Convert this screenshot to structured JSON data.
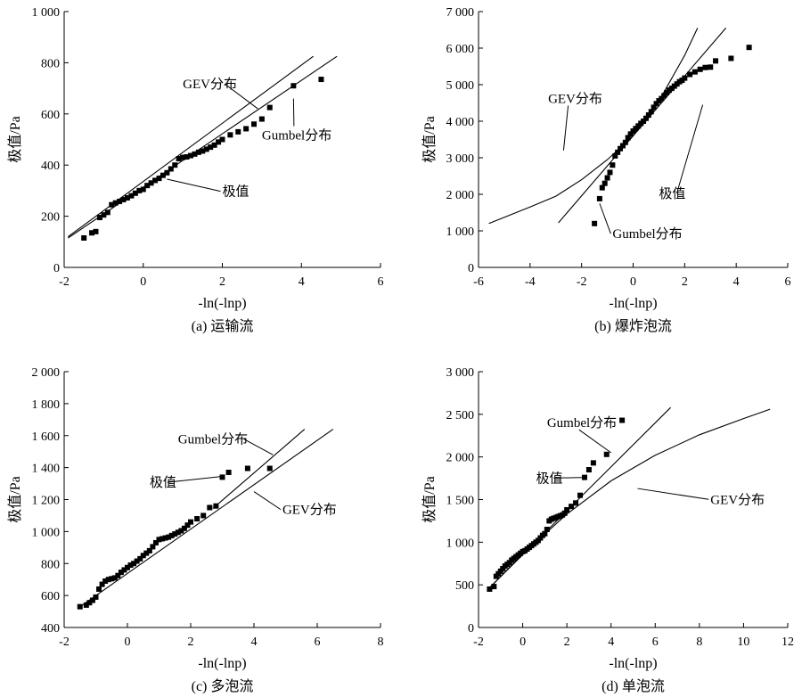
{
  "chart_data": [
    {
      "type": "scatter",
      "caption": "(a) 运输流",
      "xlabel": "-ln(-lnp)",
      "ylabel": "极值/Pa",
      "xlim": [
        -2,
        6
      ],
      "ylim": [
        0,
        1000
      ],
      "xticks": [
        -2,
        0,
        2,
        4,
        6
      ],
      "yticks": [
        0,
        200,
        400,
        600,
        800,
        1000
      ],
      "xtick_labels": [
        "-2",
        "0",
        "2",
        "4",
        "6"
      ],
      "ytick_labels": [
        "0",
        "200",
        "400",
        "600",
        "800",
        "1 000"
      ],
      "series": [
        {
          "name": "极值",
          "kind": "points",
          "x": [
            -1.5,
            -1.3,
            -1.2,
            -1.1,
            -1.0,
            -0.9,
            -0.8,
            -0.7,
            -0.6,
            -0.5,
            -0.4,
            -0.3,
            -0.2,
            -0.1,
            0.0,
            0.1,
            0.2,
            0.3,
            0.4,
            0.5,
            0.6,
            0.7,
            0.8,
            0.9,
            1.0,
            1.1,
            1.2,
            1.3,
            1.4,
            1.5,
            1.6,
            1.7,
            1.8,
            1.9,
            2.0,
            2.2,
            2.4,
            2.6,
            2.8,
            3.0,
            3.2,
            3.8,
            4.5
          ],
          "y": [
            115,
            135,
            140,
            195,
            205,
            215,
            245,
            252,
            258,
            265,
            272,
            280,
            290,
            300,
            305,
            320,
            330,
            340,
            348,
            360,
            370,
            385,
            400,
            425,
            430,
            432,
            437,
            443,
            450,
            455,
            462,
            470,
            478,
            490,
            500,
            518,
            530,
            542,
            560,
            580,
            625,
            710,
            735
          ]
        },
        {
          "name": "Gumbel分布",
          "kind": "line",
          "x": [
            -1.9,
            4.9
          ],
          "y": [
            115,
            825
          ]
        },
        {
          "name": "GEV分布",
          "kind": "line",
          "x": [
            -1.9,
            4.3
          ],
          "y": [
            120,
            825
          ]
        }
      ],
      "annotations": [
        {
          "text": "GEV分布",
          "x": 1.0,
          "y": 700,
          "ax": 2.9,
          "ay": 620
        },
        {
          "text": "Gumbel分布",
          "x": 3.0,
          "y": 500,
          "ax": 3.8,
          "ay": 660
        },
        {
          "text": "极值",
          "x": 2.0,
          "y": 280,
          "ax": 0.6,
          "ay": 345
        }
      ]
    },
    {
      "type": "scatter",
      "caption": "(b) 爆炸泡流",
      "xlabel": "-ln(-lnp)",
      "ylabel": "极值/Pa",
      "xlim": [
        -6,
        6
      ],
      "ylim": [
        0,
        7000
      ],
      "xticks": [
        -6,
        -4,
        -2,
        0,
        2,
        4,
        6
      ],
      "yticks": [
        0,
        1000,
        2000,
        3000,
        4000,
        5000,
        6000,
        7000
      ],
      "xtick_labels": [
        "-6",
        "-4",
        "-2",
        "0",
        "2",
        "4",
        "6"
      ],
      "ytick_labels": [
        "0",
        "1 000",
        "2 000",
        "3 000",
        "4 000",
        "5 000",
        "6 000",
        "7 000"
      ],
      "series": [
        {
          "name": "极值",
          "kind": "points",
          "x": [
            -1.5,
            -1.3,
            -1.2,
            -1.1,
            -1.0,
            -0.9,
            -0.8,
            -0.7,
            -0.6,
            -0.5,
            -0.4,
            -0.3,
            -0.2,
            -0.1,
            0.0,
            0.1,
            0.2,
            0.3,
            0.4,
            0.5,
            0.6,
            0.7,
            0.8,
            0.9,
            1.0,
            1.1,
            1.2,
            1.3,
            1.4,
            1.5,
            1.6,
            1.7,
            1.8,
            1.9,
            2.0,
            2.2,
            2.4,
            2.6,
            2.8,
            3.0,
            3.2,
            3.8,
            4.5
          ],
          "y": [
            1200,
            1880,
            2180,
            2300,
            2450,
            2600,
            2800,
            3050,
            3150,
            3250,
            3330,
            3420,
            3550,
            3650,
            3730,
            3800,
            3870,
            3940,
            4000,
            4080,
            4170,
            4260,
            4380,
            4480,
            4560,
            4620,
            4700,
            4780,
            4850,
            4900,
            4960,
            5020,
            5080,
            5120,
            5180,
            5280,
            5350,
            5420,
            5470,
            5480,
            5650,
            5720,
            6020
          ]
        },
        {
          "name": "Gumbel分布",
          "kind": "line",
          "x": [
            -2.9,
            3.6
          ],
          "y": [
            1220,
            6550
          ]
        },
        {
          "name": "GEV分布",
          "kind": "curve",
          "x": [
            -5.6,
            -4.0,
            -3.0,
            -2.0,
            -1.0,
            0.0,
            1.0,
            2.0,
            2.5
          ],
          "y": [
            1200,
            1650,
            1950,
            2400,
            2950,
            3600,
            4550,
            5800,
            6550
          ]
        }
      ],
      "annotations": [
        {
          "text": "GEV分布",
          "x": -3.3,
          "y": 4500,
          "ax": -2.7,
          "ay": 3200
        },
        {
          "text": "极值",
          "x": 1.0,
          "y": 1900,
          "ax": 2.7,
          "ay": 4450
        },
        {
          "text": "Gumbel分布",
          "x": -0.8,
          "y": 800,
          "ax": -1.3,
          "ay": 1750
        }
      ]
    },
    {
      "type": "scatter",
      "caption": "(c) 多泡流",
      "xlabel": "-ln(-lnp)",
      "ylabel": "极值/Pa",
      "xlim": [
        -2,
        8
      ],
      "ylim": [
        400,
        2000
      ],
      "xticks": [
        -2,
        0,
        2,
        4,
        6,
        8
      ],
      "yticks": [
        400,
        600,
        800,
        1000,
        1200,
        1400,
        1600,
        1800,
        2000
      ],
      "xtick_labels": [
        "-2",
        "0",
        "2",
        "4",
        "6",
        "8"
      ],
      "ytick_labels": [
        "400",
        "600",
        "800",
        "1 000",
        "1 200",
        "1 400",
        "1 600",
        "1 800",
        "2 000"
      ],
      "series": [
        {
          "name": "极值",
          "kind": "points",
          "x": [
            -1.5,
            -1.3,
            -1.2,
            -1.1,
            -1.0,
            -0.9,
            -0.8,
            -0.7,
            -0.6,
            -0.5,
            -0.4,
            -0.3,
            -0.2,
            -0.1,
            0.0,
            0.1,
            0.2,
            0.3,
            0.4,
            0.5,
            0.6,
            0.7,
            0.8,
            0.9,
            1.0,
            1.1,
            1.2,
            1.3,
            1.4,
            1.5,
            1.6,
            1.7,
            1.8,
            1.9,
            2.0,
            2.2,
            2.4,
            2.6,
            2.8,
            3.0,
            3.2,
            3.8,
            4.5
          ],
          "y": [
            530,
            540,
            555,
            570,
            590,
            640,
            670,
            690,
            700,
            705,
            710,
            725,
            745,
            760,
            775,
            790,
            800,
            815,
            830,
            850,
            865,
            880,
            905,
            930,
            950,
            955,
            960,
            965,
            975,
            985,
            995,
            1005,
            1020,
            1040,
            1060,
            1080,
            1100,
            1150,
            1160,
            1340,
            1370,
            1395,
            1395
          ]
        },
        {
          "name": "Gumbel分布",
          "kind": "line",
          "x": [
            2.7,
            5.6
          ],
          "y": [
            1145,
            1640
          ]
        },
        {
          "name": "GEV分布",
          "kind": "line",
          "x": [
            -1.5,
            6.5
          ],
          "y": [
            530,
            1640
          ]
        }
      ],
      "annotations": [
        {
          "text": "Gumbel分布",
          "x": 1.6,
          "y": 1550,
          "ax": 4.6,
          "ay": 1480
        },
        {
          "text": "极值",
          "x": 0.7,
          "y": 1280,
          "ax": 3.0,
          "ay": 1345
        },
        {
          "text": "GEV分布",
          "x": 4.9,
          "y": 1110,
          "ax": 4.0,
          "ay": 1250
        }
      ]
    },
    {
      "type": "scatter",
      "caption": "(d) 单泡流",
      "xlabel": "-ln(-lnp)",
      "ylabel": "极值/Pa",
      "xlim": [
        -2,
        12
      ],
      "ylim": [
        0,
        3000
      ],
      "xticks": [
        -2,
        0,
        2,
        4,
        6,
        8,
        10,
        12
      ],
      "yticks": [
        0,
        500,
        1000,
        1500,
        2000,
        2500,
        3000
      ],
      "xtick_labels": [
        "-2",
        "0",
        "2",
        "4",
        "6",
        "8",
        "10",
        "12"
      ],
      "ytick_labels": [
        "0",
        "500",
        "1 000",
        "1 500",
        "2 000",
        "2 500",
        "3 000"
      ],
      "series": [
        {
          "name": "极值",
          "kind": "points",
          "x": [
            -1.5,
            -1.3,
            -1.2,
            -1.1,
            -1.0,
            -0.9,
            -0.8,
            -0.7,
            -0.6,
            -0.5,
            -0.4,
            -0.3,
            -0.2,
            -0.1,
            0.0,
            0.1,
            0.2,
            0.3,
            0.4,
            0.5,
            0.6,
            0.7,
            0.8,
            0.9,
            1.0,
            1.1,
            1.2,
            1.3,
            1.4,
            1.5,
            1.6,
            1.7,
            1.8,
            1.9,
            2.0,
            2.2,
            2.4,
            2.6,
            2.8,
            3.0,
            3.2,
            3.8,
            4.5
          ],
          "y": [
            450,
            480,
            600,
            630,
            660,
            690,
            720,
            740,
            760,
            790,
            810,
            830,
            850,
            870,
            890,
            900,
            920,
            940,
            960,
            980,
            1000,
            1020,
            1050,
            1080,
            1100,
            1150,
            1250,
            1270,
            1280,
            1290,
            1300,
            1310,
            1320,
            1340,
            1380,
            1420,
            1460,
            1550,
            1760,
            1850,
            1930,
            2030,
            2430
          ]
        },
        {
          "name": "Gumbel分布",
          "kind": "line",
          "x": [
            -1.6,
            6.7
          ],
          "y": [
            440,
            2580
          ]
        },
        {
          "name": "GEV分布",
          "kind": "curve",
          "x": [
            -1.6,
            0.0,
            2.0,
            4.0,
            6.0,
            8.0,
            10.0,
            11.2
          ],
          "y": [
            440,
            860,
            1330,
            1720,
            2020,
            2260,
            2450,
            2560
          ]
        }
      ],
      "annotations": [
        {
          "text": "Gumbel分布",
          "x": 1.1,
          "y": 2350,
          "ax": 4.0,
          "ay": 2050
        },
        {
          "text": "极值",
          "x": 0.6,
          "y": 1700,
          "ax": 2.8,
          "ay": 1760
        },
        {
          "text": "GEV分布",
          "x": 8.5,
          "y": 1450,
          "ax": 5.2,
          "ay": 1630
        }
      ]
    }
  ]
}
